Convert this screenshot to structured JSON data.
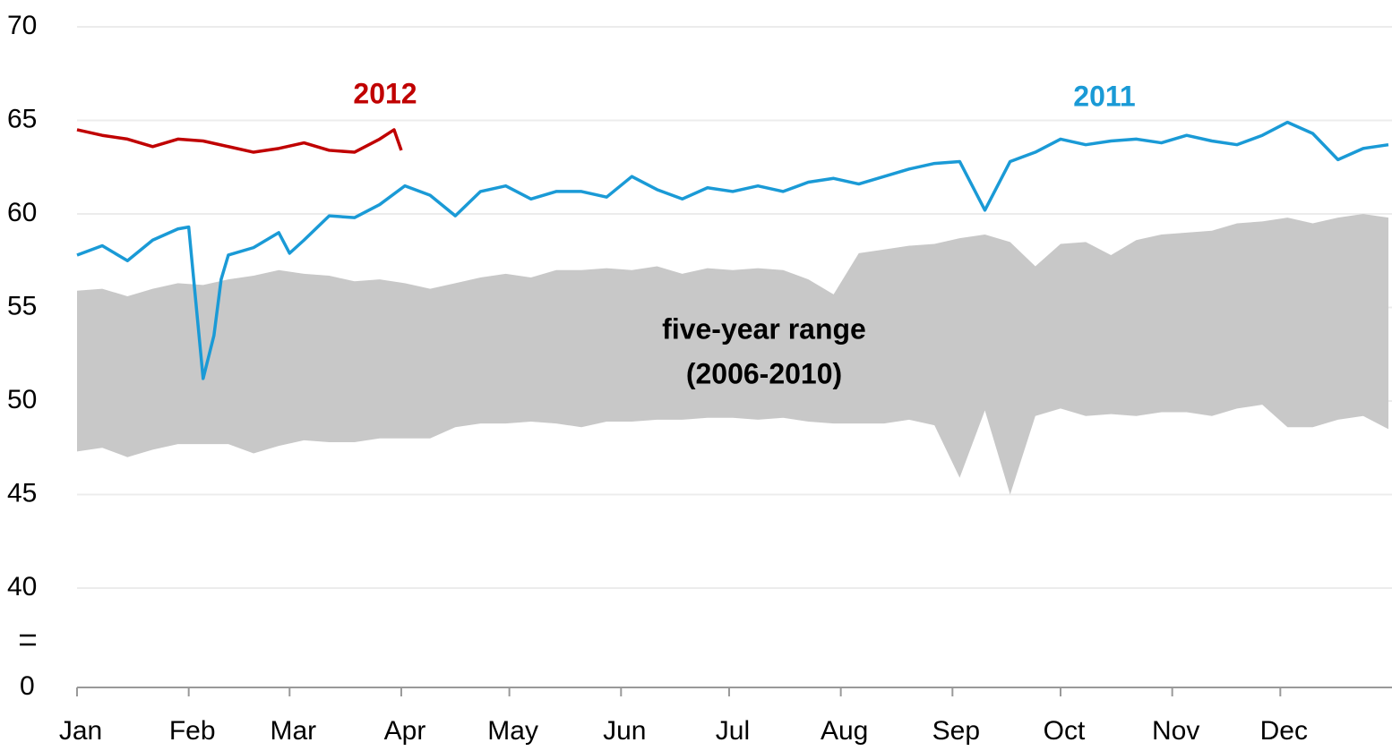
{
  "chart_data": {
    "type": "line",
    "xlim": [
      0,
      365
    ],
    "xticks": [
      {
        "value": 0,
        "label": "Jan"
      },
      {
        "value": 31,
        "label": "Feb"
      },
      {
        "value": 59,
        "label": "Mar"
      },
      {
        "value": 90,
        "label": "Apr"
      },
      {
        "value": 120,
        "label": "May"
      },
      {
        "value": 151,
        "label": "Jun"
      },
      {
        "value": 181,
        "label": "Jul"
      },
      {
        "value": 212,
        "label": "Aug"
      },
      {
        "value": 243,
        "label": "Sep"
      },
      {
        "value": 273,
        "label": "Oct"
      },
      {
        "value": 304,
        "label": "Nov"
      },
      {
        "value": 334,
        "label": "Dec"
      }
    ],
    "ylim": [
      40,
      70
    ],
    "yticks": [
      40,
      45,
      50,
      55,
      60,
      65,
      70
    ],
    "y_break_floor": 0,
    "grid": true,
    "range": {
      "label": [
        "five-year range",
        "(2006-2010)"
      ],
      "color": "#c8c8c8",
      "x": [
        0,
        7,
        14,
        21,
        28,
        35,
        42,
        49,
        56,
        63,
        70,
        77,
        84,
        91,
        98,
        105,
        112,
        119,
        126,
        133,
        140,
        147,
        154,
        161,
        168,
        175,
        182,
        189,
        196,
        203,
        210,
        217,
        224,
        231,
        238,
        245,
        252,
        259,
        266,
        273,
        280,
        287,
        294,
        301,
        308,
        315,
        322,
        329,
        336,
        343,
        350,
        357,
        364
      ],
      "upper": [
        55.9,
        56.0,
        55.6,
        56.0,
        56.3,
        56.2,
        56.5,
        56.7,
        57.0,
        56.8,
        56.7,
        56.4,
        56.5,
        56.3,
        56.0,
        56.3,
        56.6,
        56.8,
        56.6,
        57.0,
        57.0,
        57.1,
        57.0,
        57.2,
        56.8,
        57.1,
        57.0,
        57.1,
        57.0,
        56.5,
        55.7,
        57.9,
        58.1,
        58.3,
        58.4,
        58.7,
        58.9,
        58.5,
        57.2,
        58.4,
        58.5,
        57.8,
        58.6,
        58.9,
        59.0,
        59.1,
        59.5,
        59.6,
        59.8,
        59.5,
        59.8,
        60.0,
        59.8
      ],
      "lower": [
        47.3,
        47.5,
        47.0,
        47.4,
        47.7,
        47.7,
        47.7,
        47.2,
        47.6,
        47.9,
        47.8,
        47.8,
        48.0,
        48.0,
        48.0,
        48.6,
        48.8,
        48.8,
        48.9,
        48.8,
        48.6,
        48.9,
        48.9,
        49.0,
        49.0,
        49.1,
        49.1,
        49.0,
        49.1,
        48.9,
        48.8,
        48.8,
        48.8,
        49.0,
        48.7,
        45.9,
        49.5,
        45.0,
        49.2,
        49.6,
        49.2,
        49.3,
        49.2,
        49.4,
        49.4,
        49.2,
        49.6,
        49.8,
        48.6,
        48.6,
        49.0,
        49.2,
        48.5
      ]
    },
    "series": [
      {
        "name": "2012",
        "color": "#c00000",
        "x": [
          0,
          7,
          14,
          21,
          28,
          35,
          42,
          49,
          56,
          63,
          70,
          77,
          84,
          88,
          90
        ],
        "values": [
          64.5,
          64.2,
          64.0,
          63.6,
          64.0,
          63.9,
          63.6,
          63.3,
          63.5,
          63.8,
          63.4,
          63.3,
          64.0,
          64.5,
          63.4
        ]
      },
      {
        "name": "2011",
        "color": "#1a9ad6",
        "x": [
          0,
          7,
          14,
          21,
          28,
          31,
          35,
          38,
          40,
          42,
          49,
          56,
          59,
          63,
          70,
          77,
          84,
          91,
          98,
          105,
          112,
          119,
          126,
          133,
          140,
          147,
          154,
          161,
          168,
          175,
          182,
          189,
          196,
          203,
          210,
          217,
          224,
          231,
          238,
          245,
          252,
          259,
          266,
          273,
          280,
          287,
          294,
          301,
          308,
          315,
          322,
          329,
          336,
          343,
          350,
          357,
          364
        ],
        "values": [
          57.8,
          58.3,
          57.5,
          58.6,
          59.2,
          59.3,
          51.2,
          53.5,
          56.5,
          57.8,
          58.2,
          59.0,
          57.9,
          58.6,
          59.9,
          59.8,
          60.5,
          61.5,
          61.0,
          59.9,
          61.2,
          61.5,
          60.8,
          61.2,
          61.2,
          60.9,
          62.0,
          61.3,
          60.8,
          61.4,
          61.2,
          61.5,
          61.2,
          61.7,
          61.9,
          61.6,
          62.0,
          62.4,
          62.7,
          62.8,
          60.2,
          62.8,
          63.3,
          64.0,
          63.7,
          63.9,
          64.0,
          63.8,
          64.2,
          63.9,
          63.7,
          64.2,
          64.9,
          64.3,
          62.9,
          63.5,
          63.7
        ]
      }
    ]
  }
}
